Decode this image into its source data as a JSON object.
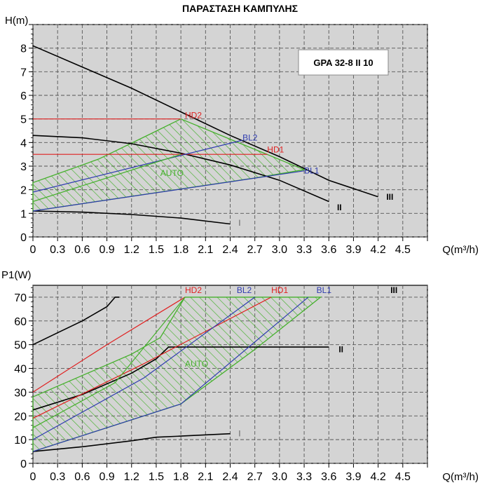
{
  "page_title": "ΠΑΡΑΣΤΑΣΗ ΚΑΜΠΥΛΗΣ",
  "model_label": "GPA 32-8 II 10",
  "colors": {
    "plot_bg": "#d4d4d4",
    "grid": "#555555",
    "speed_curve": "#000000",
    "hd": "#e02020",
    "bl": "#2f3cb0",
    "auto": "#45b02c"
  },
  "chart_data": [
    {
      "type": "line",
      "title": "ΠΑΡΑΣΤΑΣΗ ΚΑΜΠΥΛΗΣ",
      "xlabel": "Q(m³/h)",
      "ylabel": "H(m)",
      "xlim": [
        0,
        4.8
      ],
      "ylim": [
        0,
        9
      ],
      "grid": true,
      "x_ticks": [
        "0",
        "0.3",
        "0.6",
        "0.9",
        "1.2",
        "1.5",
        "1.8",
        "2.1",
        "2.4",
        "2.7",
        "3.0",
        "3.3",
        "3.6",
        "3.9",
        "4.2",
        "4.5"
      ],
      "x_tick_values": [
        0,
        0.3,
        0.6,
        0.9,
        1.2,
        1.5,
        1.8,
        2.1,
        2.4,
        2.7,
        3.0,
        3.3,
        3.6,
        3.9,
        4.2,
        4.5
      ],
      "y_ticks": [
        "0",
        "1",
        "2",
        "3",
        "4",
        "5",
        "6",
        "7",
        "8"
      ],
      "y_tick_values": [
        0,
        1,
        2,
        3,
        4,
        5,
        6,
        7,
        8
      ],
      "series": [
        {
          "name": "III",
          "group": "speed",
          "points": [
            [
              0,
              8.1
            ],
            [
              0.6,
              7.2
            ],
            [
              1.2,
              6.3
            ],
            [
              1.8,
              5.3
            ],
            [
              2.4,
              4.3
            ],
            [
              3.0,
              3.4
            ],
            [
              3.6,
              2.4
            ],
            [
              4.2,
              1.7
            ]
          ]
        },
        {
          "name": "II",
          "group": "speed",
          "points": [
            [
              0,
              4.3
            ],
            [
              0.6,
              4.2
            ],
            [
              1.2,
              3.95
            ],
            [
              1.8,
              3.55
            ],
            [
              2.4,
              3.05
            ],
            [
              3.0,
              2.4
            ],
            [
              3.6,
              1.5
            ]
          ]
        },
        {
          "name": "I",
          "group": "speed",
          "points": [
            [
              0,
              1.1
            ],
            [
              0.6,
              1.05
            ],
            [
              1.2,
              0.95
            ],
            [
              1.8,
              0.8
            ],
            [
              2.4,
              0.55
            ]
          ]
        },
        {
          "name": "HD2",
          "group": "hd",
          "points": [
            [
              0,
              5.0
            ],
            [
              1.8,
              5.0
            ]
          ]
        },
        {
          "name": "HD1",
          "group": "hd",
          "points": [
            [
              0,
              3.5
            ],
            [
              2.85,
              3.5
            ]
          ]
        },
        {
          "name": "BL2",
          "group": "bl",
          "points": [
            [
              0,
              1.9
            ],
            [
              2.55,
              4.1
            ]
          ]
        },
        {
          "name": "BL1",
          "group": "bl",
          "points": [
            [
              0,
              1.1
            ],
            [
              3.3,
              2.8
            ]
          ]
        },
        {
          "name": "AUTO",
          "group": "auto",
          "points": [
            [
              0,
              1.5
            ],
            [
              1.8,
              3.5
            ]
          ]
        }
      ],
      "auto_region": [
        [
          0,
          1.5
        ],
        [
          0,
          2.3
        ],
        [
          0.8,
          3.3
        ],
        [
          1.45,
          4.4
        ],
        [
          1.8,
          5.0
        ],
        [
          3.3,
          2.85
        ],
        [
          2.7,
          2.5
        ],
        [
          0,
          1.1
        ]
      ],
      "annotations": [
        {
          "text": "HD2",
          "x": 1.85,
          "y": 5.15,
          "group": "hd"
        },
        {
          "text": "BL2",
          "x": 2.55,
          "y": 4.2,
          "group": "bl"
        },
        {
          "text": "HD1",
          "x": 2.85,
          "y": 3.7,
          "group": "hd"
        },
        {
          "text": "BL1",
          "x": 3.3,
          "y": 2.8,
          "group": "bl"
        },
        {
          "text": "AUTO",
          "x": 1.55,
          "y": 2.7,
          "group": "auto"
        },
        {
          "text": "III",
          "x": 4.3,
          "y": 1.7,
          "group": "speed"
        },
        {
          "text": "II",
          "x": 3.7,
          "y": 1.25,
          "group": "speed"
        },
        {
          "text": "I",
          "x": 2.5,
          "y": 0.6,
          "group": "speed"
        }
      ]
    },
    {
      "type": "line",
      "title": "",
      "xlabel": "Q(m³/h)",
      "ylabel": "P1(W)",
      "xlim": [
        0,
        4.8
      ],
      "ylim": [
        0,
        75
      ],
      "grid": true,
      "x_ticks": [
        "0",
        "0.3",
        "0.6",
        "0.9",
        "1.2",
        "1.5",
        "1.8",
        "2.1",
        "2.4",
        "2.7",
        "3.0",
        "3.3",
        "3.6",
        "3.9",
        "4.2",
        "4.5"
      ],
      "x_tick_values": [
        0,
        0.3,
        0.6,
        0.9,
        1.2,
        1.5,
        1.8,
        2.1,
        2.4,
        2.7,
        3.0,
        3.3,
        3.6,
        3.9,
        4.2,
        4.5
      ],
      "y_ticks": [
        "0",
        "10",
        "20",
        "30",
        "40",
        "50",
        "60",
        "70"
      ],
      "y_tick_values": [
        0,
        10,
        20,
        30,
        40,
        50,
        60,
        70
      ],
      "series": [
        {
          "name": "III",
          "group": "speed",
          "points": [
            [
              0,
              50
            ],
            [
              0.3,
              55
            ],
            [
              0.6,
              60
            ],
            [
              0.9,
              66
            ],
            [
              1.0,
              70
            ],
            [
              1.05,
              70
            ]
          ]
        },
        {
          "name": "II",
          "group": "speed",
          "points": [
            [
              0,
              22.5
            ],
            [
              0.6,
              29
            ],
            [
              1.2,
              38
            ],
            [
              1.5,
              44
            ],
            [
              1.65,
              49
            ],
            [
              3.6,
              49
            ]
          ]
        },
        {
          "name": "I",
          "group": "speed",
          "points": [
            [
              0,
              5
            ],
            [
              0.6,
              7
            ],
            [
              1.2,
              9.5
            ],
            [
              1.5,
              11
            ],
            [
              1.8,
              11.5
            ],
            [
              2.4,
              12.5
            ]
          ]
        },
        {
          "name": "HD2",
          "group": "hd",
          "points": [
            [
              0,
              30
            ],
            [
              0.9,
              50
            ],
            [
              1.85,
              70
            ]
          ]
        },
        {
          "name": "HD1",
          "group": "hd",
          "points": [
            [
              0,
              19
            ],
            [
              1.35,
              42
            ],
            [
              2.9,
              70
            ]
          ]
        },
        {
          "name": "BL2",
          "group": "bl",
          "points": [
            [
              0,
              10
            ],
            [
              1.35,
              36
            ],
            [
              2.7,
              70
            ]
          ]
        },
        {
          "name": "BL1",
          "group": "bl",
          "points": [
            [
              0,
              5
            ],
            [
              1.8,
              25
            ],
            [
              3.35,
              70
            ]
          ]
        },
        {
          "name": "AUTO",
          "group": "auto",
          "points": [
            [
              0,
              15
            ],
            [
              1.0,
              34
            ],
            [
              1.85,
              70
            ]
          ]
        }
      ],
      "auto_region": [
        [
          0,
          15
        ],
        [
          0,
          28
        ],
        [
          0.6,
          37
        ],
        [
          1.2,
          46
        ],
        [
          1.55,
          53
        ],
        [
          1.85,
          70
        ],
        [
          3.5,
          70
        ],
        [
          2.7,
          48
        ],
        [
          1.8,
          25
        ],
        [
          0,
          5
        ]
      ],
      "annotations": [
        {
          "text": "HD2",
          "x": 1.85,
          "y": 73,
          "group": "hd"
        },
        {
          "text": "BL2",
          "x": 2.48,
          "y": 73,
          "group": "bl"
        },
        {
          "text": "HD1",
          "x": 2.9,
          "y": 73,
          "group": "hd"
        },
        {
          "text": "BL1",
          "x": 3.45,
          "y": 73,
          "group": "bl"
        },
        {
          "text": "III",
          "x": 4.35,
          "y": 73,
          "group": "speed"
        },
        {
          "text": "II",
          "x": 3.72,
          "y": 48,
          "group": "speed"
        },
        {
          "text": "AUTO",
          "x": 1.85,
          "y": 42,
          "group": "auto"
        },
        {
          "text": "I",
          "x": 2.5,
          "y": 12.5,
          "group": "speed"
        }
      ]
    }
  ]
}
